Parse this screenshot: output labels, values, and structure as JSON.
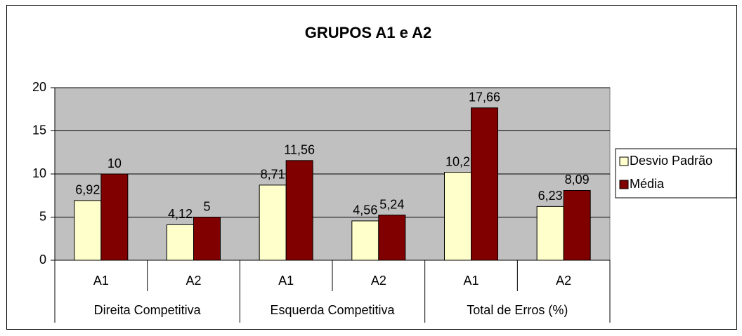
{
  "chart_data": {
    "type": "bar",
    "title": "GRUPOS A1 e A2",
    "categories": [
      "A1",
      "A2",
      "A1",
      "A2",
      "A1",
      "A2"
    ],
    "groups": [
      "Direita Competitiva",
      "Esquerda Competitiva",
      "Total de Erros (%)"
    ],
    "series": [
      {
        "name": "Desvio Padrão",
        "color": "#ffffcc",
        "values": [
          6.92,
          4.12,
          8.71,
          4.56,
          10.2,
          6.23
        ],
        "value_labels": [
          "6,92",
          "4,12",
          "8,71",
          "4,56",
          "10,2",
          "6,23"
        ]
      },
      {
        "name": "Média",
        "color": "#800000",
        "values": [
          10,
          5,
          11.56,
          5.24,
          17.66,
          8.09
        ],
        "value_labels": [
          "10",
          "5",
          "11,56",
          "5,24",
          "17,66",
          "8,09"
        ]
      }
    ],
    "ylim": [
      0,
      20
    ],
    "yticks": [
      0,
      5,
      10,
      15,
      20
    ],
    "grid": true,
    "plot_background": "#c0c0c0",
    "legend": "right"
  }
}
